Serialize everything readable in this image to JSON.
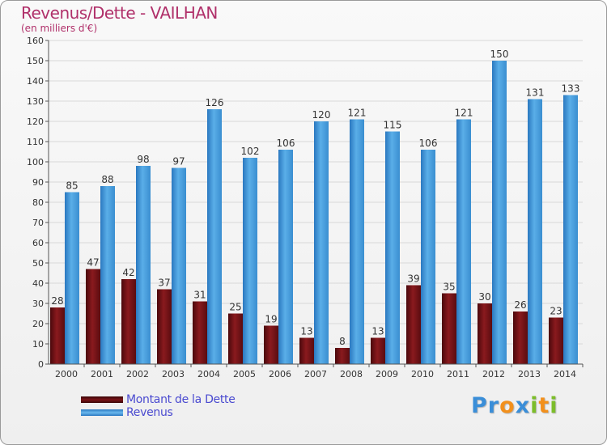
{
  "header": {
    "title": "Revenus/Dette - VAILHAN",
    "subtitle": "(en milliers d'€)"
  },
  "colors": {
    "dette": "#7a1418",
    "revenus": "#3a94d8",
    "title": "#b0306a",
    "legend_text": "#4a4ad0"
  },
  "legend": {
    "items": [
      {
        "label": "Montant de la Dette",
        "color": "#5a0c10"
      },
      {
        "label": "Revenus",
        "color": "#3a94d8"
      }
    ]
  },
  "logo": {
    "text": "Proxiti",
    "letters": [
      {
        "char": "P",
        "color": "#3a8ed8"
      },
      {
        "char": "r",
        "color": "#3a8ed8"
      },
      {
        "char": "o",
        "color": "#f2901c"
      },
      {
        "char": "x",
        "color": "#3a8ed8"
      },
      {
        "char": "i",
        "color": "#7cbd2a"
      },
      {
        "char": "t",
        "color": "#f2901c"
      },
      {
        "char": "i",
        "color": "#7cbd2a"
      }
    ]
  },
  "chart_data": {
    "type": "bar",
    "title": "Revenus/Dette - VAILHAN",
    "subtitle": "(en milliers d'€)",
    "xlabel": "",
    "ylabel": "",
    "ylim": [
      0,
      160
    ],
    "ytick_step": 10,
    "grid": true,
    "legend_position": "bottom-left",
    "categories": [
      "2000",
      "2001",
      "2002",
      "2003",
      "2004",
      "2005",
      "2006",
      "2007",
      "2008",
      "2009",
      "2010",
      "2011",
      "2012",
      "2013",
      "2014"
    ],
    "series": [
      {
        "name": "Montant de la Dette",
        "color": "#7a1418",
        "values": [
          28,
          47,
          42,
          37,
          31,
          25,
          19,
          13,
          8,
          13,
          39,
          35,
          30,
          26,
          23
        ]
      },
      {
        "name": "Revenus",
        "color": "#3a94d8",
        "values": [
          85,
          88,
          98,
          97,
          126,
          102,
          106,
          120,
          121,
          115,
          106,
          121,
          150,
          131,
          133
        ]
      }
    ]
  }
}
